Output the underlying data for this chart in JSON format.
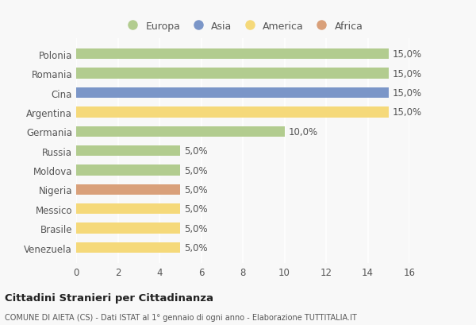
{
  "countries": [
    "Polonia",
    "Romania",
    "Cina",
    "Argentina",
    "Germania",
    "Russia",
    "Moldova",
    "Nigeria",
    "Messico",
    "Brasile",
    "Venezuela"
  ],
  "values": [
    15.0,
    15.0,
    15.0,
    15.0,
    10.0,
    5.0,
    5.0,
    5.0,
    5.0,
    5.0,
    5.0
  ],
  "continents": [
    "Europa",
    "Europa",
    "Asia",
    "America",
    "Europa",
    "Europa",
    "Europa",
    "Africa",
    "America",
    "America",
    "America"
  ],
  "colors": {
    "Europa": "#b2cc8f",
    "Asia": "#7b96c8",
    "America": "#f5d97a",
    "Africa": "#d9a07a"
  },
  "legend_order": [
    "Europa",
    "Asia",
    "America",
    "Africa"
  ],
  "xlim": [
    0,
    16
  ],
  "xticks": [
    0,
    2,
    4,
    6,
    8,
    10,
    12,
    14,
    16
  ],
  "title": "Cittadini Stranieri per Cittadinanza",
  "subtitle": "COMUNE DI AIETA (CS) - Dati ISTAT al 1° gennaio di ogni anno - Elaborazione TUTTITALIA.IT",
  "background_color": "#f8f8f8",
  "bar_height": 0.55,
  "label_fontsize": 8.5,
  "bar_label_fontsize": 8.5,
  "grid_color": "#ffffff",
  "text_color": "#555555",
  "title_color": "#222222",
  "subtitle_color": "#555555"
}
